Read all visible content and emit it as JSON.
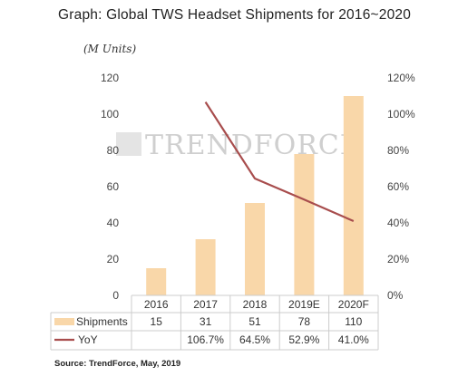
{
  "title": "Graph: Global TWS Headset Shipments for 2016~2020",
  "unit_label": "(M Units)",
  "watermark": "TRENDFORCE",
  "source": "Source: TrendForce, May, 2019",
  "colors": {
    "bar": "#f9d7a9",
    "line": "#a84d4d",
    "grid": "#d9d9d9",
    "table_border": "#cccccc",
    "watermark": "#cfcfcf"
  },
  "chart_data": {
    "type": "bar",
    "categories": [
      "2016",
      "2017",
      "2018",
      "2019E",
      "2020F"
    ],
    "ylim": [
      0,
      120
    ],
    "y2lim": [
      0,
      120
    ],
    "y_ticks": [
      "0",
      "20",
      "40",
      "60",
      "80",
      "100",
      "120"
    ],
    "y2_ticks": [
      "0%",
      "20%",
      "40%",
      "60%",
      "80%",
      "100%",
      "120%"
    ],
    "series": [
      {
        "name": "Shipments",
        "type": "bar",
        "axis": "left",
        "values": [
          15,
          31,
          51,
          78,
          110
        ],
        "labels": [
          "15",
          "31",
          "51",
          "78",
          "110"
        ]
      },
      {
        "name": "YoY",
        "type": "line",
        "axis": "right",
        "values": [
          null,
          106.7,
          64.5,
          52.9,
          41.0
        ],
        "labels": [
          "",
          "106.7%",
          "64.5%",
          "52.9%",
          "41.0%"
        ]
      }
    ],
    "grid": false,
    "legend": "data-table-below"
  }
}
